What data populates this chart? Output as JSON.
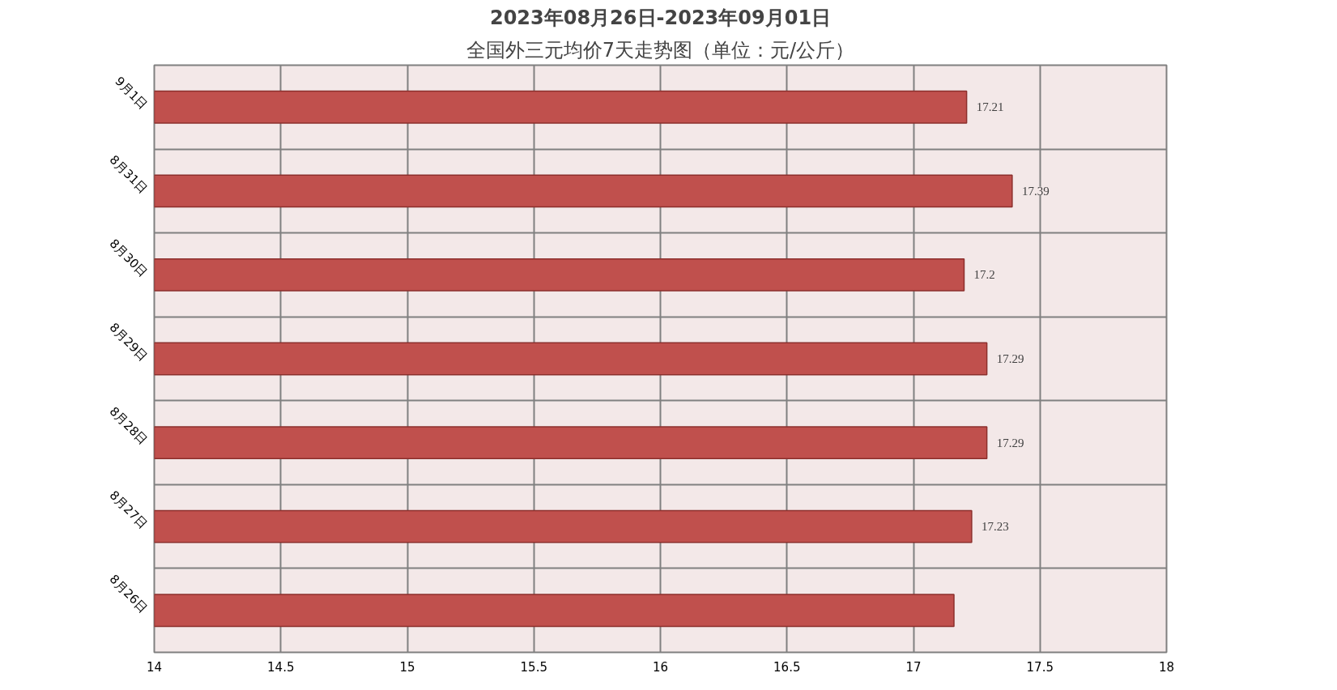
{
  "chart_data": {
    "type": "bar",
    "orientation": "horizontal",
    "title": "2023年08月26日-2023年09月01日",
    "subtitle": "全国外三元均价7天走势图（单位：元/公斤）",
    "categories": [
      "9月1日",
      "8月31日",
      "8月30日",
      "8月29日",
      "8月28日",
      "8月27日",
      "8月26日"
    ],
    "values": [
      17.21,
      17.39,
      17.2,
      17.29,
      17.29,
      17.23,
      17.16
    ],
    "value_labels": [
      "17.21",
      "17.39",
      "17.2",
      "17.29",
      "17.29",
      "17.23",
      null
    ],
    "color": "#c0504d",
    "xlim": [
      14,
      18
    ],
    "xticks": [
      14,
      14.5,
      15,
      15.5,
      16,
      16.5,
      17,
      17.5,
      18
    ],
    "grid": true
  }
}
